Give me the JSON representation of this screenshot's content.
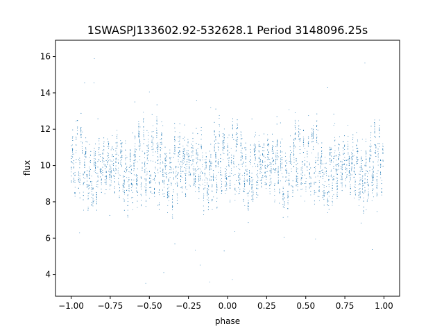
{
  "chart_data": {
    "type": "scatter",
    "title": "1SWASPJ133602.92-532628.1 Period 3148096.25s",
    "xlabel": "phase",
    "ylabel": "flux",
    "xlim": [
      -1.1,
      1.1
    ],
    "ylim": [
      2.8,
      16.9
    ],
    "xticks": [
      -1.0,
      -0.75,
      -0.5,
      -0.25,
      0.0,
      0.25,
      0.5,
      0.75,
      1.0
    ],
    "xtick_labels": [
      "−1.00",
      "−0.75",
      "−0.50",
      "−0.25",
      "0.00",
      "0.25",
      "0.50",
      "0.75",
      "1.00"
    ],
    "yticks": [
      4,
      6,
      8,
      10,
      12,
      14,
      16
    ],
    "ytick_labels": [
      "4",
      "6",
      "8",
      "10",
      "12",
      "14",
      "16"
    ],
    "grid": false,
    "marker_color": "#1f77b4",
    "x_range_data": [
      -1.0,
      1.0
    ],
    "mean_flux": 10.0,
    "series": [
      {
        "values_profile": {
          "phase_folded_half_period": [
            {
              "x": 0.0,
              "mean": 9.8,
              "spread": 1.3
            },
            {
              "x": 0.08,
              "mean": 10.5,
              "spread": 2.2
            },
            {
              "x": 0.15,
              "mean": 10.3,
              "spread": 2.0
            },
            {
              "x": 0.2,
              "mean": 9.5,
              "spread": 1.2
            },
            {
              "x": 0.28,
              "mean": 9.0,
              "spread": 1.4
            },
            {
              "x": 0.33,
              "mean": 9.8,
              "spread": 1.8
            },
            {
              "x": 0.4,
              "mean": 10.0,
              "spread": 1.2
            },
            {
              "x": 0.5,
              "mean": 10.1,
              "spread": 1.0
            }
          ]
        }
      }
    ]
  }
}
